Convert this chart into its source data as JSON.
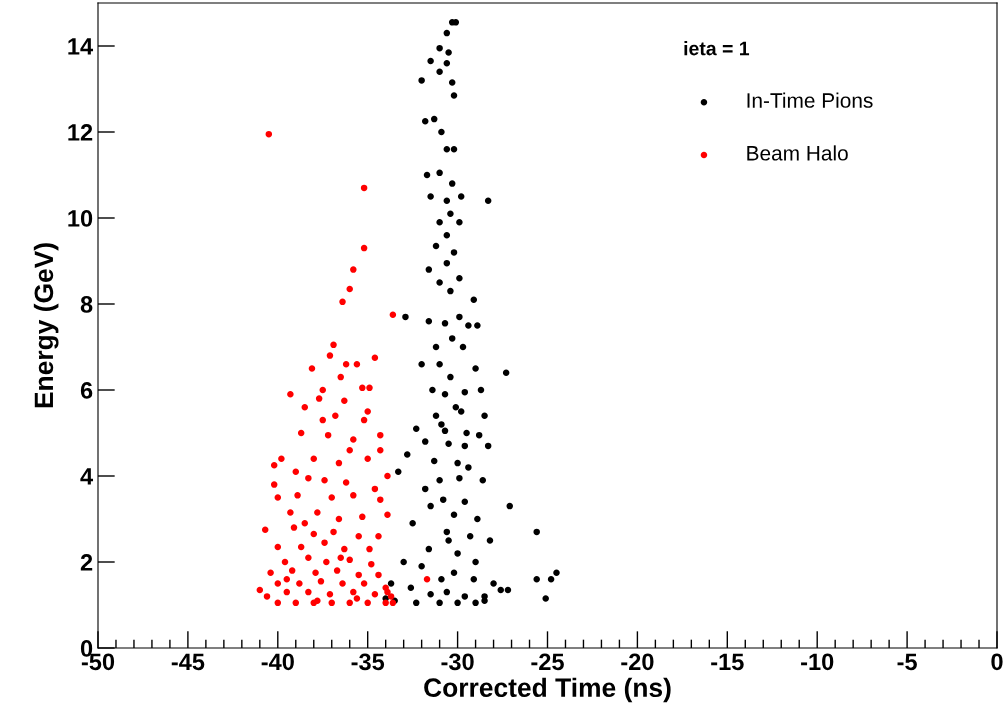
{
  "chart_data": {
    "type": "scatter",
    "xlabel": "Corrected Time (ns)",
    "ylabel": "Energy (GeV)",
    "legend_title": "ieta = 1",
    "legend": "top right",
    "marker": "circle",
    "grid": false,
    "xlim": [
      -50,
      0
    ],
    "ylim": [
      0,
      15
    ],
    "xticks": [
      -50,
      {
        "value": -49,
        "label": null
      },
      {
        "value": -48,
        "label": null
      },
      {
        "value": -47,
        "label": null
      },
      {
        "value": -46,
        "label": null
      },
      -45,
      {
        "value": -44,
        "label": null
      },
      {
        "value": -43,
        "label": null
      },
      {
        "value": -42,
        "label": null
      },
      {
        "value": -41,
        "label": null
      },
      -40,
      {
        "value": -39,
        "label": null
      },
      {
        "value": -38,
        "label": null
      },
      {
        "value": -37,
        "label": null
      },
      {
        "value": -36,
        "label": null
      },
      -35,
      {
        "value": -34,
        "label": null
      },
      {
        "value": -33,
        "label": null
      },
      {
        "value": -32,
        "label": null
      },
      {
        "value": -31,
        "label": null
      },
      -30,
      {
        "value": -29,
        "label": null
      },
      {
        "value": -28,
        "label": null
      },
      {
        "value": -27,
        "label": null
      },
      {
        "value": -26,
        "label": null
      },
      -25,
      {
        "value": -24,
        "label": null
      },
      {
        "value": -23,
        "label": null
      },
      {
        "value": -22,
        "label": null
      },
      {
        "value": -21,
        "label": null
      },
      -20,
      {
        "value": -19,
        "label": null
      },
      {
        "value": -18,
        "label": null
      },
      {
        "value": -17,
        "label": null
      },
      {
        "value": -16,
        "label": null
      },
      -15,
      {
        "value": -14,
        "label": null
      },
      {
        "value": -13,
        "label": null
      },
      {
        "value": -12,
        "label": null
      },
      {
        "value": -11,
        "label": null
      },
      -10,
      {
        "value": -9,
        "label": null
      },
      {
        "value": -8,
        "label": null
      },
      {
        "value": -7,
        "label": null
      },
      {
        "value": -6,
        "label": null
      },
      -5,
      {
        "value": -4,
        "label": null
      },
      {
        "value": -3,
        "label": null
      },
      {
        "value": -2,
        "label": null
      },
      {
        "value": -1,
        "label": null
      },
      0
    ],
    "yticks": [
      0,
      2,
      4,
      6,
      8,
      10,
      12,
      14
    ],
    "series": [
      {
        "name": "In-Time Pions",
        "color": "#000000",
        "x": [
          -30.3,
          -30.1,
          -30.6,
          -31.0,
          -30.5,
          -31.5,
          -30.6,
          -31.0,
          -32.0,
          -30.3,
          -30.2,
          -31.8,
          -30.9,
          -30.2,
          -30.6,
          -31.7,
          -31.0,
          -30.3,
          -28.3,
          -31.5,
          -30.6,
          -29.8,
          -31.0,
          -30.4,
          -30.6,
          -31.2,
          -30.2,
          -30.6,
          -31.6,
          -29.9,
          -31.0,
          -30.4,
          -29.1,
          -32.9,
          -31.6,
          -30.7,
          -29.9,
          -29.4,
          -28.9,
          -30.3,
          -31.2,
          -29.7,
          -32.0,
          -31.0,
          -29.0,
          -27.3,
          -30.4,
          -31.4,
          -30.7,
          -29.6,
          -28.7,
          -30.1,
          -31.2,
          -29.8,
          -32.3,
          -30.7,
          -29.5,
          -28.8,
          -31.8,
          -30.5,
          -29.6,
          -28.3,
          -30.0,
          -31.3,
          -32.8,
          -33.3,
          -31.0,
          -29.9,
          -28.6,
          -30.8,
          -29.6,
          -30.2,
          -31.5,
          -28.9,
          -27.1,
          -32.5,
          -30.6,
          -29.3,
          -28.2,
          -31.6,
          -30.0,
          -29.0,
          -33.0,
          -25.6,
          -32.0,
          -30.9,
          -30.2,
          -29.1,
          -28.0,
          -33.7,
          -32.6,
          -31.5,
          -30.6,
          -29.6,
          -28.5,
          -27.6,
          -27.2,
          -24.5,
          -24.8,
          -25.6,
          -25.1,
          -33.5,
          -32.3,
          -31.0,
          -30.0,
          -29.0,
          -28.5,
          -34.0,
          -30.5,
          -31.8,
          -29.4,
          -30.9,
          -28.5,
          -29.9,
          -31.3
        ],
        "values": [
          14.55,
          14.55,
          14.3,
          13.95,
          13.85,
          13.65,
          13.6,
          13.4,
          13.2,
          13.15,
          12.85,
          12.25,
          12.0,
          11.6,
          11.6,
          11.0,
          11.05,
          10.8,
          10.4,
          10.5,
          10.4,
          10.5,
          9.9,
          10.1,
          9.6,
          9.35,
          9.2,
          8.95,
          8.8,
          8.6,
          8.5,
          8.3,
          8.1,
          7.7,
          7.6,
          7.55,
          7.7,
          7.5,
          7.5,
          7.2,
          7.0,
          7.0,
          6.6,
          6.6,
          6.5,
          6.4,
          6.3,
          6.0,
          5.9,
          5.95,
          6.0,
          5.6,
          5.4,
          5.5,
          5.1,
          5.05,
          5.0,
          4.95,
          4.8,
          4.75,
          4.7,
          4.7,
          4.3,
          4.35,
          4.5,
          4.1,
          3.9,
          3.95,
          3.9,
          3.45,
          3.4,
          3.1,
          3.3,
          3.0,
          3.3,
          2.9,
          2.7,
          2.6,
          2.5,
          2.3,
          2.2,
          2.0,
          2.0,
          2.7,
          1.9,
          1.6,
          1.75,
          1.6,
          1.5,
          1.5,
          1.4,
          1.25,
          1.3,
          1.2,
          1.2,
          1.35,
          1.35,
          1.75,
          1.6,
          1.6,
          1.15,
          1.1,
          1.05,
          1.05,
          1.05,
          1.05,
          1.1,
          1.15,
          2.5,
          3.7,
          4.2,
          5.2,
          5.4,
          9.9,
          12.3
        ]
      },
      {
        "name": "Beam Halo",
        "color": "#ff0000",
        "x": [
          -40.5,
          -35.2,
          -35.2,
          -35.8,
          -36.0,
          -36.4,
          -33.6,
          -36.9,
          -37.1,
          -34.6,
          -35.6,
          -36.2,
          -38.1,
          -36.5,
          -34.9,
          -35.3,
          -39.3,
          -37.7,
          -36.3,
          -35.0,
          -38.5,
          -37.5,
          -36.8,
          -35.2,
          -38.7,
          -37.2,
          -35.8,
          -34.3,
          -39.8,
          -38.0,
          -36.6,
          -35.0,
          -33.9,
          -40.2,
          -38.3,
          -37.4,
          -36.2,
          -34.6,
          -40.2,
          -38.9,
          -37.0,
          -35.8,
          -34.3,
          -40.0,
          -39.3,
          -37.8,
          -36.6,
          -35.3,
          -33.9,
          -40.7,
          -39.1,
          -38.0,
          -36.9,
          -35.5,
          -34.4,
          -40.0,
          -38.7,
          -37.4,
          -36.3,
          -34.9,
          -39.6,
          -38.3,
          -37.3,
          -36.0,
          -34.8,
          -40.4,
          -39.2,
          -37.9,
          -36.7,
          -35.5,
          -34.4,
          -41.0,
          -40.0,
          -38.8,
          -37.6,
          -36.4,
          -35.2,
          -34.0,
          -40.6,
          -39.5,
          -38.3,
          -37.1,
          -35.8,
          -34.6,
          -33.7,
          -40.0,
          -39.0,
          -38.0,
          -37.0,
          -36.0,
          -35.0,
          -34.0,
          -33.6,
          -31.7,
          -38.5,
          -36.0,
          -37.5,
          -39.0,
          -36.5,
          -37.8,
          -35.6,
          -39.5,
          -34.3,
          -33.9
        ],
        "values": [
          11.95,
          10.7,
          9.3,
          8.8,
          8.35,
          8.05,
          7.75,
          7.05,
          6.8,
          6.75,
          6.6,
          6.6,
          6.5,
          6.3,
          6.05,
          6.05,
          5.9,
          5.8,
          5.75,
          5.5,
          5.6,
          5.3,
          5.4,
          5.3,
          5.0,
          4.95,
          4.85,
          4.95,
          4.4,
          4.4,
          4.3,
          4.4,
          4.0,
          4.25,
          3.95,
          3.9,
          3.85,
          3.7,
          3.8,
          3.55,
          3.5,
          3.55,
          3.45,
          3.5,
          3.15,
          3.15,
          3.0,
          3.05,
          3.1,
          2.75,
          2.8,
          2.65,
          2.7,
          2.6,
          2.6,
          2.35,
          2.35,
          2.45,
          2.3,
          2.3,
          2.0,
          2.1,
          2.0,
          2.05,
          1.95,
          1.75,
          1.8,
          1.75,
          1.8,
          1.7,
          1.7,
          1.35,
          1.5,
          1.5,
          1.55,
          1.5,
          1.5,
          1.4,
          1.2,
          1.3,
          1.3,
          1.25,
          1.3,
          1.25,
          1.2,
          1.05,
          1.05,
          1.05,
          1.05,
          1.05,
          1.05,
          1.05,
          1.05,
          1.6,
          2.9,
          4.6,
          6.0,
          4.1,
          2.1,
          1.1,
          1.15,
          1.6,
          4.6,
          1.3
        ]
      }
    ]
  }
}
